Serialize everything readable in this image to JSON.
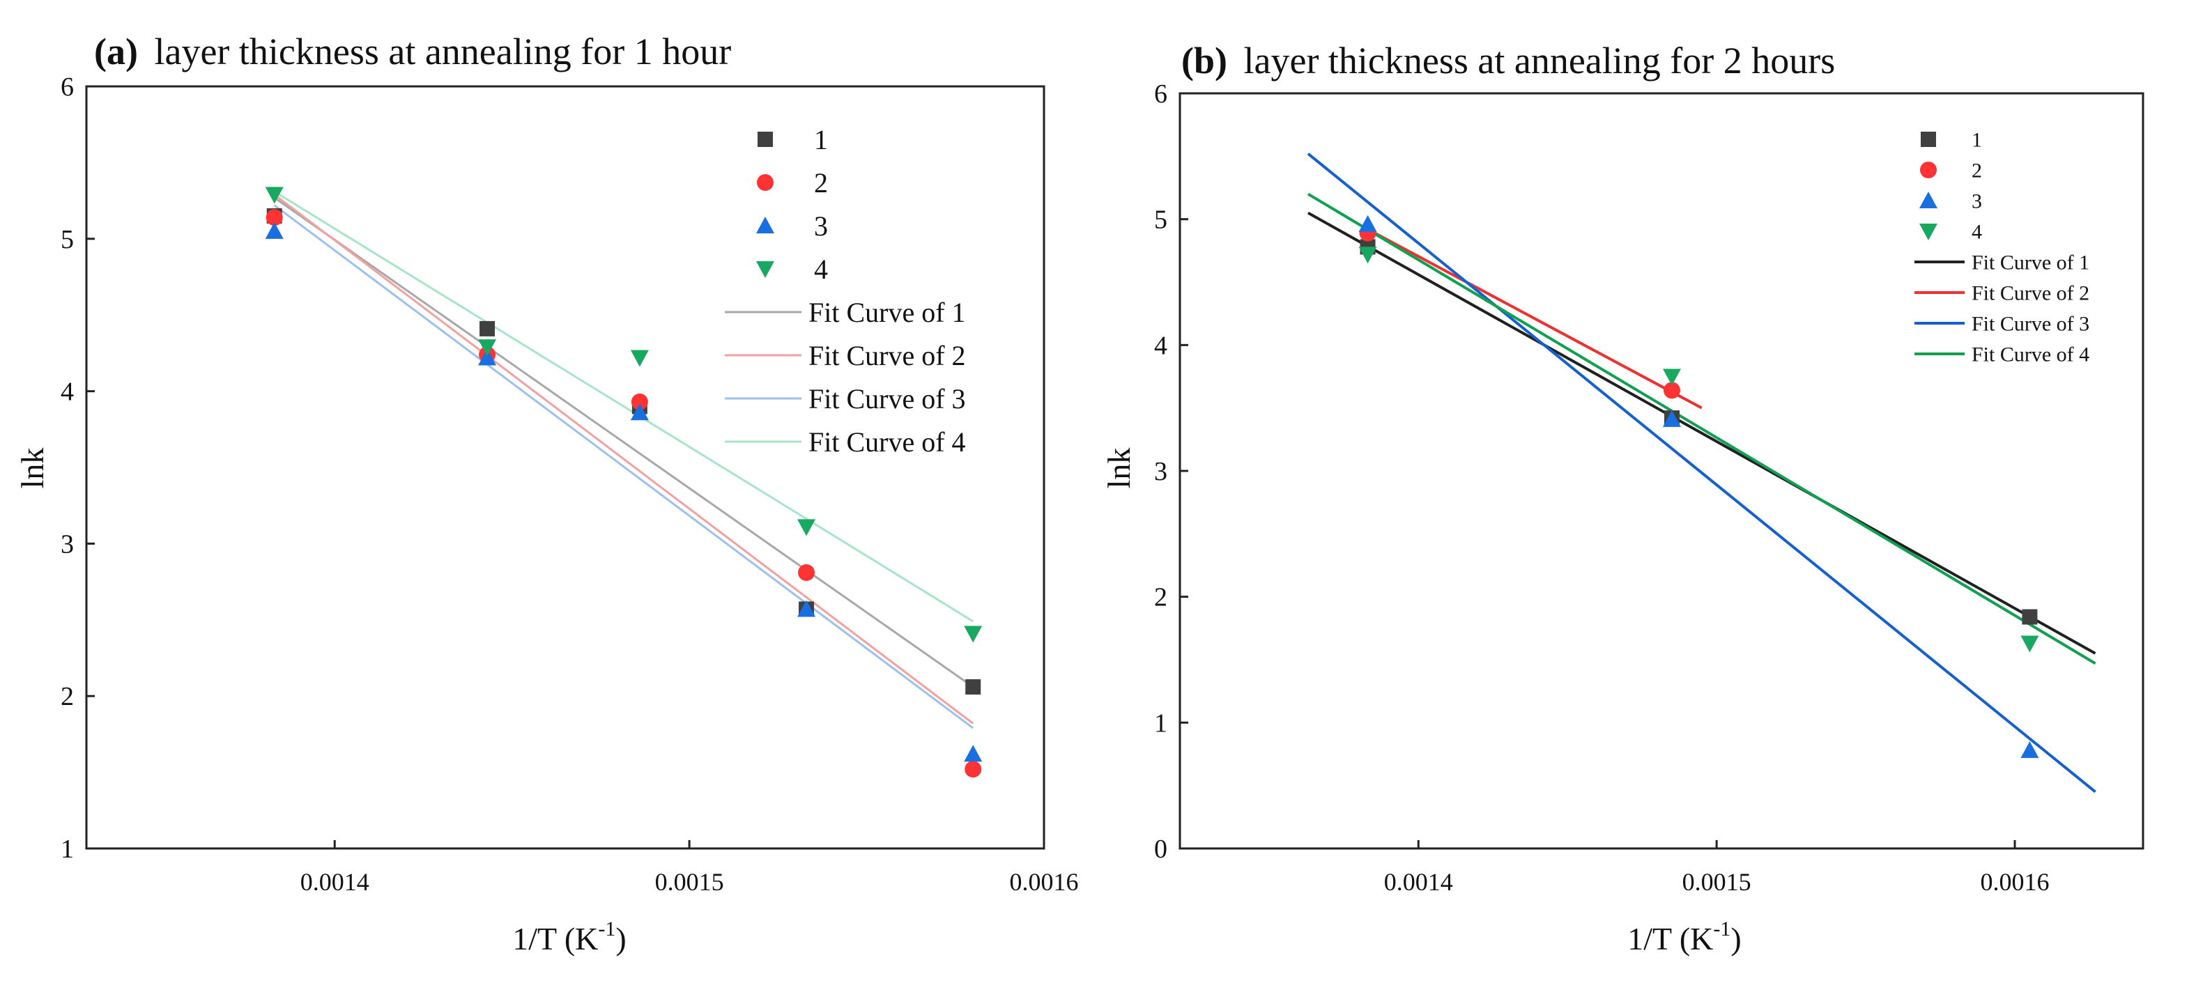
{
  "chart_data": [
    {
      "panel": "a",
      "type": "scatter",
      "title_prefix": "(a)",
      "title": "layer thickness at annealing for 1 hour",
      "xlabel_base": "1/T (K",
      "xlabel_sup": "-1",
      "xlabel_close": ")",
      "ylabel": "lnk",
      "xlim": [
        0.00133,
        0.0016
      ],
      "ylim": [
        1,
        6
      ],
      "xticks": [
        0.0014,
        0.0015,
        0.0016
      ],
      "xtick_labels": [
        "0.0014",
        "0.0015",
        "0.0016"
      ],
      "yticks": [
        1,
        2,
        3,
        4,
        5,
        6
      ],
      "ytick_labels": [
        "1",
        "2",
        "3",
        "4",
        "5",
        "6"
      ],
      "legend_position": "top-right",
      "series": [
        {
          "name": "1",
          "marker": "square",
          "color": "#404040",
          "x": [
            0.001383,
            0.001443,
            0.001486,
            0.001533,
            0.00158
          ],
          "y": [
            5.15,
            4.41,
            3.9,
            2.57,
            2.06
          ]
        },
        {
          "name": "2",
          "marker": "circle",
          "color": "#ff3333",
          "x": [
            0.001383,
            0.001443,
            0.001486,
            0.001533,
            0.00158
          ],
          "y": [
            5.14,
            4.24,
            3.93,
            2.81,
            1.52
          ]
        },
        {
          "name": "3",
          "marker": "triangle-up",
          "color": "#1a6fe0",
          "x": [
            0.001383,
            0.001443,
            0.001486,
            0.001533,
            0.00158
          ],
          "y": [
            5.05,
            4.22,
            3.86,
            2.57,
            1.62
          ]
        },
        {
          "name": "4",
          "marker": "triangle-down",
          "color": "#19a860",
          "x": [
            0.001383,
            0.001443,
            0.001486,
            0.001533,
            0.00158
          ],
          "y": [
            5.29,
            4.29,
            4.22,
            3.11,
            2.41
          ]
        }
      ],
      "fits": [
        {
          "name": "Fit Curve of 1",
          "color": "#a8a8a8",
          "x": [
            0.001383,
            0.00158
          ],
          "y": [
            5.27,
            2.06
          ]
        },
        {
          "name": "Fit Curve of 2",
          "color": "#f4a0a0",
          "x": [
            0.001383,
            0.00158
          ],
          "y": [
            5.29,
            1.82
          ]
        },
        {
          "name": "Fit Curve of 3",
          "color": "#9cc0ef",
          "x": [
            0.001383,
            0.00158
          ],
          "y": [
            5.22,
            1.79
          ]
        },
        {
          "name": "Fit Curve of 4",
          "color": "#a8e4c8",
          "x": [
            0.001383,
            0.00158
          ],
          "y": [
            5.31,
            2.49
          ]
        }
      ]
    },
    {
      "panel": "b",
      "type": "scatter",
      "title_prefix": "(b)",
      "title": "layer thickness at annealing for 2 hours",
      "xlabel_base": "1/T (K",
      "xlabel_sup": "-1",
      "xlabel_close": ")",
      "ylabel": "lnk",
      "xlim": [
        0.00132,
        0.001643
      ],
      "ylim": [
        0,
        6
      ],
      "xticks": [
        0.0014,
        0.0015,
        0.0016
      ],
      "xtick_labels": [
        "0.0014",
        "0.0015",
        "0.0016"
      ],
      "yticks": [
        0,
        1,
        2,
        3,
        4,
        5,
        6
      ],
      "ytick_labels": [
        "0",
        "1",
        "2",
        "3",
        "4",
        "5",
        "6"
      ],
      "legend_position": "top-right",
      "series": [
        {
          "name": "1",
          "marker": "square",
          "color": "#404040",
          "x": [
            0.001383,
            0.001485,
            0.001605
          ],
          "y": [
            4.78,
            3.42,
            1.84
          ]
        },
        {
          "name": "2",
          "marker": "circle",
          "color": "#ff3333",
          "x": [
            0.001383,
            0.001485
          ],
          "y": [
            4.89,
            3.64
          ]
        },
        {
          "name": "3",
          "marker": "triangle-up",
          "color": "#1a6fe0",
          "x": [
            0.001383,
            0.001485,
            0.001605
          ],
          "y": [
            4.96,
            3.41,
            0.78
          ]
        },
        {
          "name": "4",
          "marker": "triangle-down",
          "color": "#19a860",
          "x": [
            0.001383,
            0.001485,
            0.001605
          ],
          "y": [
            4.72,
            3.75,
            1.63
          ]
        }
      ],
      "fits": [
        {
          "name": "Fit Curve of 1",
          "color": "#202020",
          "x": [
            0.001363,
            0.001627
          ],
          "y": [
            5.05,
            1.55
          ]
        },
        {
          "name": "Fit Curve of 2",
          "color": "#f03030",
          "x": [
            0.001383,
            0.001495
          ],
          "y": [
            4.92,
            3.5
          ]
        },
        {
          "name": "Fit Curve of 3",
          "color": "#1560d0",
          "x": [
            0.001363,
            0.001627
          ],
          "y": [
            5.52,
            0.45
          ]
        },
        {
          "name": "Fit Curve of 4",
          "color": "#10a050",
          "x": [
            0.001363,
            0.001627
          ],
          "y": [
            5.2,
            1.47
          ]
        }
      ]
    }
  ]
}
